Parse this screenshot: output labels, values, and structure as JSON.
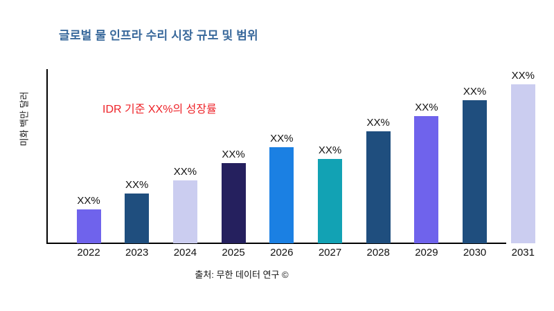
{
  "page": {
    "title": "글로벌 물 인프라 수리 시장 규모 및 범위",
    "annotation": "IDR 기준 XX%의 성장률",
    "ylabel": "미화 백만 달러",
    "source": "출처: 무한 데이터 연구 ©"
  },
  "colors": {
    "title": "#38689B",
    "annotation": "#EE2228",
    "axis": "#000000",
    "label": "#111111"
  },
  "chart_data": {
    "type": "bar",
    "title": "글로벌 물 인프라 수리 시장 규모 및 범위",
    "ylabel": "미화 백만 달러",
    "xlabel": "",
    "annotation": "IDR 기준 XX%의 성장률",
    "source": "출처: 무한 데이터 연구 ©",
    "categories": [
      "2022",
      "2023",
      "2024",
      "2025",
      "2026",
      "2027",
      "2028",
      "2029",
      "2030",
      "2031"
    ],
    "values": [
      21.3,
      31.3,
      39.6,
      50.4,
      60.4,
      53.0,
      70.4,
      80.0,
      90.0,
      100.0
    ],
    "values_note": "numeric values are masked as XX% in the chart; values given are relative bar heights in % of the tallest (2031) bar",
    "bar_labels": [
      "XX%",
      "XX%",
      "XX%",
      "XX%",
      "XX%",
      "XX%",
      "XX%",
      "XX%",
      "XX%",
      "XX%"
    ],
    "bar_colors": [
      "#6F63EC",
      "#1F4E7E",
      "#CBCDF0",
      "#25205E",
      "#1B80E3",
      "#12A2B4",
      "#1F4E7E",
      "#6F63EC",
      "#1F4E7E",
      "#CBCDF0"
    ],
    "ylim": "no numeric axis ticks shown",
    "grid": false,
    "legend": false
  }
}
